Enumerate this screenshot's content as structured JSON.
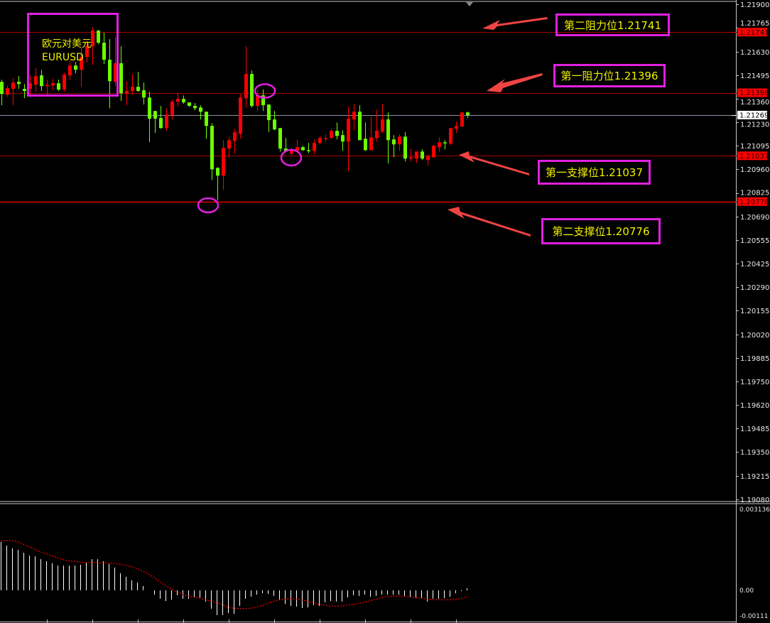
{
  "chart_data": {
    "type": "candlestick",
    "title_cn": "欧元对美元",
    "symbol": "EURUSD",
    "colors": {
      "bull": "#ff0000",
      "bear": "#6cff00",
      "current_line": "#8c94a4",
      "level_line": "#e00000",
      "annotation_border": "#e020e0",
      "annotation_text": "#f0f000",
      "arrow": "#f04444",
      "macd_hist": "#ffffff",
      "macd_signal": "#ff0000"
    },
    "price_axis": {
      "ylim": [
        1.1908,
        1.219
      ],
      "ticks": [
        "1.21900",
        "1.21765",
        "1.21630",
        "1.21495",
        "1.21360",
        "1.21230",
        "1.21095",
        "1.20960",
        "1.20825",
        "1.20690",
        "1.20555",
        "1.20425",
        "1.20290",
        "1.20155",
        "1.20020",
        "1.19885",
        "1.19750",
        "1.19620",
        "1.19485",
        "1.19350",
        "1.19215",
        "1.19080"
      ]
    },
    "current_price": "1.21269",
    "levels": [
      {
        "price": "1.21741",
        "label": "第二阻力位1.21741"
      },
      {
        "price": "1.21396",
        "label": "第一阻力位1.21396"
      },
      {
        "price": "1.21037",
        "label": "第一支撑位1.21037"
      },
      {
        "price": "1.20776",
        "label": "第二支撑位1.20776"
      }
    ],
    "candles_ohlc": [
      [
        1.21458,
        1.2147,
        1.21325,
        1.21389
      ],
      [
        1.21385,
        1.21438,
        1.21373,
        1.21422
      ],
      [
        1.21418,
        1.21479,
        1.21325,
        1.21454
      ],
      [
        1.21458,
        1.21491,
        1.21418,
        1.21446
      ],
      [
        1.21418,
        1.21446,
        1.21365,
        1.21406
      ],
      [
        1.21418,
        1.21495,
        1.21385,
        1.2145
      ],
      [
        1.21442,
        1.21535,
        1.21402,
        1.21491
      ],
      [
        1.21495,
        1.21527,
        1.21406,
        1.21434
      ],
      [
        1.21434,
        1.2147,
        1.21385,
        1.21442
      ],
      [
        1.21438,
        1.21474,
        1.2141,
        1.2145
      ],
      [
        1.2145,
        1.2147,
        1.21406,
        1.21414
      ],
      [
        1.21414,
        1.21511,
        1.21402,
        1.21499
      ],
      [
        1.21495,
        1.2158,
        1.2147,
        1.21551
      ],
      [
        1.21551,
        1.21572,
        1.21507,
        1.21527
      ],
      [
        1.21527,
        1.21653,
        1.2143,
        1.216
      ],
      [
        1.216,
        1.21693,
        1.21568,
        1.21661
      ],
      [
        1.21661,
        1.2177,
        1.21555,
        1.2175
      ],
      [
        1.2175,
        1.21754,
        1.21673,
        1.21681
      ],
      [
        1.21681,
        1.21738,
        1.2156,
        1.21584
      ],
      [
        1.21584,
        1.21701,
        1.21308,
        1.21462
      ],
      [
        1.21458,
        1.21713,
        1.21438,
        1.21564
      ],
      [
        1.21564,
        1.21661,
        1.21349,
        1.21393
      ],
      [
        1.21393,
        1.21462,
        1.21325,
        1.21406
      ],
      [
        1.21406,
        1.21503,
        1.21385,
        1.2143
      ],
      [
        1.2143,
        1.21515,
        1.21402,
        1.21406
      ],
      [
        1.2141,
        1.21454,
        1.21329,
        1.21369
      ],
      [
        1.21369,
        1.21402,
        1.21114,
        1.21248
      ],
      [
        1.21292,
        1.21292,
        1.21167,
        1.21248
      ],
      [
        1.21252,
        1.21321,
        1.21191,
        1.21195
      ],
      [
        1.21195,
        1.21308,
        1.21179,
        1.21272
      ],
      [
        1.21268,
        1.21357,
        1.21244,
        1.21345
      ],
      [
        1.21345,
        1.21398,
        1.21317,
        1.21361
      ],
      [
        1.21361,
        1.21381,
        1.21333,
        1.21341
      ],
      [
        1.21341,
        1.21341,
        1.21317,
        1.21321
      ],
      [
        1.21321,
        1.21337,
        1.21296,
        1.21308
      ],
      [
        1.21312,
        1.21325,
        1.21244,
        1.21288
      ],
      [
        1.21288,
        1.21288,
        1.21134,
        1.21207
      ],
      [
        1.21207,
        1.21223,
        1.20899,
        1.2096
      ],
      [
        1.20968,
        1.20972,
        1.20782,
        1.20924
      ],
      [
        1.20924,
        1.21126,
        1.20843,
        1.21082
      ],
      [
        1.21078,
        1.21142,
        1.21025,
        1.21126
      ],
      [
        1.21122,
        1.21191,
        1.21049,
        1.21171
      ],
      [
        1.21163,
        1.21389,
        1.21134,
        1.21369
      ],
      [
        1.21365,
        1.21661,
        1.21312,
        1.21503
      ],
      [
        1.21503,
        1.21523,
        1.21312,
        1.21321
      ],
      [
        1.21321,
        1.2141,
        1.21292,
        1.21381
      ],
      [
        1.21381,
        1.21414,
        1.21292,
        1.21325
      ],
      [
        1.21329,
        1.21329,
        1.21171,
        1.2124
      ],
      [
        1.21244,
        1.21292,
        1.21183,
        1.21187
      ],
      [
        1.21195,
        1.21195,
        1.21061,
        1.21078
      ],
      [
        1.21078,
        1.21138,
        1.21061,
        1.21065
      ],
      [
        1.21049,
        1.21082,
        1.21037,
        1.21065
      ],
      [
        1.21065,
        1.2113,
        1.21061,
        1.21086
      ],
      [
        1.21086,
        1.21094,
        1.21065,
        1.21069
      ],
      [
        1.21069,
        1.2111,
        1.21053,
        1.21065
      ],
      [
        1.21065,
        1.2113,
        1.21045,
        1.2111
      ],
      [
        1.2111,
        1.2115,
        1.21102,
        1.21138
      ],
      [
        1.21134,
        1.21159,
        1.21118,
        1.21138
      ],
      [
        1.21138,
        1.21191,
        1.21134,
        1.21179
      ],
      [
        1.21179,
        1.21227,
        1.2113,
        1.2115
      ],
      [
        1.21155,
        1.21183,
        1.21065,
        1.21118
      ],
      [
        1.21118,
        1.21317,
        1.20948,
        1.21248
      ],
      [
        1.21244,
        1.21333,
        1.21183,
        1.21288
      ],
      [
        1.21288,
        1.21325,
        1.21126,
        1.21126
      ],
      [
        1.21134,
        1.21227,
        1.21065,
        1.21069
      ],
      [
        1.21069,
        1.2126,
        1.21069,
        1.21142
      ],
      [
        1.21138,
        1.213,
        1.21118,
        1.21179
      ],
      [
        1.21175,
        1.21333,
        1.21167,
        1.21244
      ],
      [
        1.21244,
        1.21284,
        1.20993,
        1.21126
      ],
      [
        1.2113,
        1.21155,
        1.21029,
        1.21102
      ],
      [
        1.21102,
        1.21159,
        1.21065,
        1.21146
      ],
      [
        1.21146,
        1.21171,
        1.21005,
        1.21021
      ],
      [
        1.21021,
        1.21078,
        1.21005,
        1.21029
      ],
      [
        1.21021,
        1.21061,
        1.20997,
        1.21061
      ],
      [
        1.21061,
        1.21074,
        1.21013,
        1.21021
      ],
      [
        1.21013,
        1.21041,
        1.2098,
        1.21037
      ],
      [
        1.21029,
        1.21098,
        1.21025,
        1.21094
      ],
      [
        1.21086,
        1.21142,
        1.21061,
        1.21114
      ],
      [
        1.21114,
        1.21126,
        1.21074,
        1.2111
      ],
      [
        1.21106,
        1.21195,
        1.21098,
        1.21195
      ],
      [
        1.21191,
        1.21231,
        1.21167,
        1.21207
      ],
      [
        1.21203,
        1.21284,
        1.21203,
        1.21284
      ],
      [
        1.21284,
        1.21288,
        1.21252,
        1.21269
      ]
    ],
    "macd": {
      "axis_labels": [
        "0.003136",
        "0.00",
        "-0.00111"
      ],
      "histogram": [
        0.00189,
        0.00175,
        0.00164,
        0.00158,
        0.00147,
        0.00136,
        0.00133,
        0.00122,
        0.00114,
        0.00106,
        0.00097,
        0.00097,
        0.00097,
        0.00097,
        0.001,
        0.00108,
        0.00122,
        0.00122,
        0.00114,
        0.00103,
        0.00089,
        0.00067,
        0.00053,
        0.00039,
        0.00031,
        0.00017,
        0.0,
        -0.00017,
        -0.00033,
        -0.00042,
        -0.00036,
        -0.00019,
        -0.00033,
        -0.00033,
        -0.00025,
        -0.00031,
        -0.00044,
        -0.00072,
        -0.00097,
        -0.00097,
        -0.00089,
        -0.00092,
        -0.00061,
        -0.00033,
        -0.00025,
        -0.00017,
        -0.00011,
        -0.00014,
        -0.00022,
        -0.00039,
        -0.00053,
        -0.00061,
        -0.00064,
        -0.00069,
        -0.00067,
        -0.00058,
        -0.00061,
        -0.00047,
        -0.00042,
        -0.00044,
        -0.00044,
        -0.00028,
        -0.00019,
        -0.00022,
        -0.00017,
        -0.00025,
        -0.00022,
        -0.00017,
        -0.00017,
        -0.00017,
        -0.00017,
        -0.00022,
        -0.00025,
        -0.00031,
        -0.00031,
        -0.00044,
        -0.00033,
        -0.00033,
        -0.00031,
        -0.00025,
        -0.00011,
        -3e-05,
        8e-05
      ],
      "signal": [
        0.00193,
        0.00195,
        0.00195,
        0.0019,
        0.0018,
        0.0017,
        0.0016,
        0.0015,
        0.00143,
        0.00135,
        0.00127,
        0.0012,
        0.00115,
        0.00113,
        0.0011,
        0.00109,
        0.00108,
        0.00108,
        0.00108,
        0.00107,
        0.00105,
        0.00102,
        0.00098,
        0.00093,
        0.00085,
        0.00075,
        0.00063,
        0.0005,
        0.00033,
        0.00018,
        5e-05,
        -5e-05,
        -0.00016,
        -0.00022,
        -0.00027,
        -0.0003,
        -0.00036,
        -0.00042,
        -0.00048,
        -0.00056,
        -0.00066,
        -0.0007,
        -0.00071,
        -0.00071,
        -0.0007,
        -0.00066,
        -0.0006,
        -0.0005,
        -0.00043,
        -0.00037,
        -0.00034,
        -0.00032,
        -0.00034,
        -0.00038,
        -0.00043,
        -0.00048,
        -0.00054,
        -0.00058,
        -0.00062,
        -0.00062,
        -0.00061,
        -0.00058,
        -0.00055,
        -0.00051,
        -0.00047,
        -0.00041,
        -0.00035,
        -0.00028,
        -0.00025,
        -0.00023,
        -0.00022,
        -0.00024,
        -0.00026,
        -0.00028,
        -0.0003,
        -0.00034,
        -0.00036,
        -0.00037,
        -0.00037,
        -0.00037,
        -0.00036,
        -0.00032,
        -0.00025
      ]
    }
  }
}
